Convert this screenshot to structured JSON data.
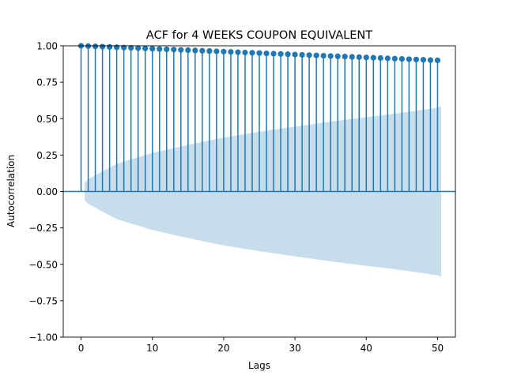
{
  "chart_data": {
    "type": "stem",
    "title": "ACF for 4 WEEKS COUPON EQUIVALENT",
    "xlabel": "Lags",
    "ylabel": "Autocorrelation",
    "xlim": [
      -2.5,
      52.5
    ],
    "ylim": [
      -1.0,
      1.0
    ],
    "x_ticks": [
      0,
      10,
      20,
      30,
      40,
      50
    ],
    "y_ticks": [
      -1.0,
      -0.75,
      -0.5,
      -0.25,
      0.0,
      0.25,
      0.5,
      0.75,
      1.0
    ],
    "y_tick_labels": [
      "−1.00",
      "−0.75",
      "−0.50",
      "−0.25",
      "0.00",
      "0.25",
      "0.50",
      "0.75",
      "1.00"
    ],
    "series": [
      {
        "x": [
          0,
          1,
          2,
          3,
          4,
          5,
          6,
          7,
          8,
          9,
          10,
          11,
          12,
          13,
          14,
          15,
          16,
          17,
          18,
          19,
          20,
          21,
          22,
          23,
          24,
          25,
          26,
          27,
          28,
          29,
          30,
          31,
          32,
          33,
          34,
          35,
          36,
          37,
          38,
          39,
          40,
          41,
          42,
          43,
          44,
          45,
          46,
          47,
          48,
          49,
          50
        ],
        "values": [
          1.0,
          0.998,
          0.996,
          0.994,
          0.992,
          0.99,
          0.988,
          0.986,
          0.984,
          0.982,
          0.98,
          0.978,
          0.976,
          0.974,
          0.972,
          0.97,
          0.968,
          0.966,
          0.964,
          0.962,
          0.96,
          0.958,
          0.956,
          0.954,
          0.952,
          0.95,
          0.948,
          0.946,
          0.944,
          0.942,
          0.94,
          0.938,
          0.936,
          0.934,
          0.932,
          0.93,
          0.928,
          0.926,
          0.924,
          0.922,
          0.92,
          0.918,
          0.916,
          0.914,
          0.912,
          0.91,
          0.908,
          0.906,
          0.904,
          0.902,
          0.9
        ]
      }
    ],
    "confidence_band": {
      "x": [
        0.5,
        1,
        5,
        10,
        15,
        20,
        25,
        30,
        35,
        40,
        45,
        50,
        50.5
      ],
      "upper": [
        0.06,
        0.085,
        0.19,
        0.265,
        0.32,
        0.37,
        0.41,
        0.445,
        0.48,
        0.51,
        0.54,
        0.575,
        0.585
      ],
      "lower": [
        -0.06,
        -0.085,
        -0.19,
        -0.265,
        -0.32,
        -0.37,
        -0.41,
        -0.445,
        -0.48,
        -0.51,
        -0.54,
        -0.575,
        -0.585
      ]
    },
    "grid": false,
    "legend": "none",
    "color": "#1f77b4"
  }
}
